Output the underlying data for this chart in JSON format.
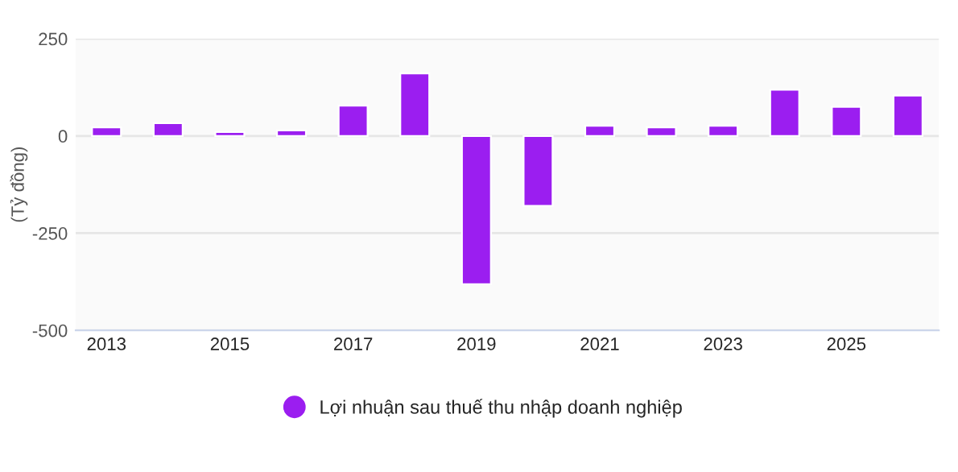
{
  "chart_data": {
    "type": "bar",
    "ylabel": "(Tỷ đồng)",
    "categories": [
      "2013",
      null,
      "2015",
      null,
      "2017",
      null,
      "2019",
      null,
      "2021",
      null,
      "2023",
      null,
      "2025",
      null
    ],
    "series": [
      {
        "name": "Lợi nhuận sau thuế thu nhập doanh nghiệp",
        "color": "#9b1ef0",
        "values": [
          22,
          33,
          10,
          14,
          78,
          161,
          -381,
          -180,
          26,
          22,
          26,
          119,
          75,
          104
        ]
      }
    ],
    "ylim": [
      -500,
      250
    ],
    "yticks": [
      -500,
      -250,
      0,
      250
    ],
    "grid": "y",
    "legend": "bottom"
  }
}
